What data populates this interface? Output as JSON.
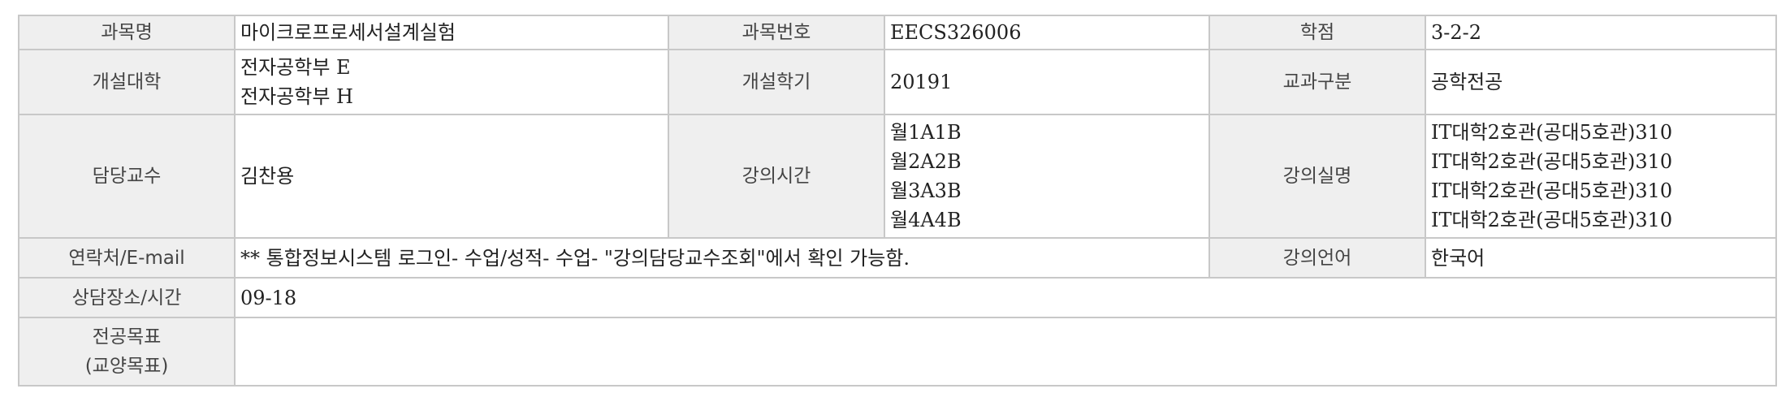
{
  "labels": {
    "course_name": "과목명",
    "course_number": "과목번호",
    "credits": "학점",
    "college": "개설대학",
    "semester": "개설학기",
    "category": "교과구분",
    "professor": "담당교수",
    "lecture_time": "강의시간",
    "lecture_room": "강의실명",
    "contact": "연락처/E-mail",
    "language": "강의언어",
    "consult": "상담장소/시간",
    "goal_line1": "전공목표",
    "goal_line2": "(교양목표)"
  },
  "values": {
    "course_name": "마이크로프로세서설계실험",
    "course_number": "EECS326006",
    "credits": "3-2-2",
    "college": [
      "전자공학부 E",
      "전자공학부 H"
    ],
    "semester": "20191",
    "category": "공학전공",
    "professor": "김찬용",
    "lecture_time": [
      "월1A1B",
      "월2A2B",
      "월3A3B",
      "월4A4B"
    ],
    "lecture_room": [
      "IT대학2호관(공대5호관)310",
      "IT대학2호관(공대5호관)310",
      "IT대학2호관(공대5호관)310",
      "IT대학2호관(공대5호관)310"
    ],
    "contact": "** 통합정보시스템 로그인- 수업/성적- 수업- \"강의담당교수조회\"에서 확인 가능함.",
    "language": "한국어",
    "consult": "09-18",
    "goal": ""
  }
}
